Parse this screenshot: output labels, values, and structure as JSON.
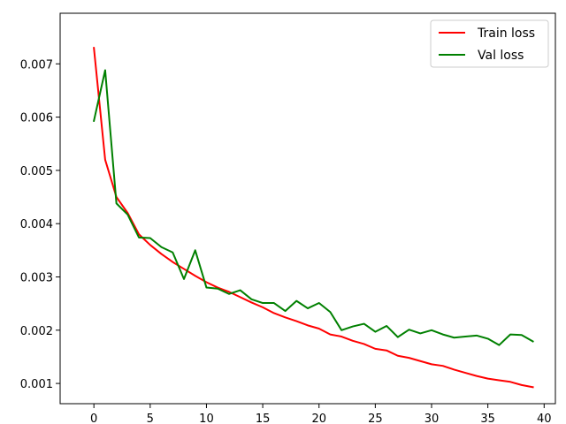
{
  "chart_data": {
    "type": "line",
    "title": "",
    "xlabel": "",
    "ylabel": "",
    "xlim": [
      -3,
      41
    ],
    "ylim": [
      0.00062,
      0.00795
    ],
    "xticks": [
      0,
      5,
      10,
      15,
      20,
      25,
      30,
      35,
      40
    ],
    "xtick_labels": [
      "0",
      "5",
      "10",
      "15",
      "20",
      "25",
      "30",
      "35",
      "40"
    ],
    "yticks": [
      0.001,
      0.002,
      0.003,
      0.004,
      0.005,
      0.006,
      0.007
    ],
    "ytick_labels": [
      "0.001",
      "0.002",
      "0.003",
      "0.004",
      "0.005",
      "0.006",
      "0.007"
    ],
    "grid": false,
    "legend_position": "top-right",
    "x": [
      0,
      1,
      2,
      3,
      4,
      5,
      6,
      7,
      8,
      9,
      10,
      11,
      12,
      13,
      14,
      15,
      16,
      17,
      18,
      19,
      20,
      21,
      22,
      23,
      24,
      25,
      26,
      27,
      28,
      29,
      30,
      31,
      32,
      33,
      34,
      35,
      36,
      37,
      38,
      39
    ],
    "series": [
      {
        "name": "Train loss",
        "color": "#ff0000",
        "values": [
          0.0073,
          0.0052,
          0.0045,
          0.0042,
          0.0038,
          0.0036,
          0.00343,
          0.00328,
          0.00315,
          0.00302,
          0.0029,
          0.0028,
          0.00272,
          0.00262,
          0.00252,
          0.00243,
          0.00232,
          0.00224,
          0.00217,
          0.00209,
          0.00203,
          0.00192,
          0.00188,
          0.0018,
          0.00174,
          0.00165,
          0.00162,
          0.00152,
          0.00148,
          0.00142,
          0.00136,
          0.00133,
          0.00126,
          0.0012,
          0.00114,
          0.00109,
          0.00106,
          0.00103,
          0.00097,
          0.00093
        ]
      },
      {
        "name": "Val loss",
        "color": "#008000",
        "values": [
          0.00593,
          0.00688,
          0.00438,
          0.00417,
          0.00374,
          0.00373,
          0.00356,
          0.00346,
          0.00296,
          0.0035,
          0.0028,
          0.00278,
          0.00268,
          0.00275,
          0.00258,
          0.00251,
          0.00251,
          0.00236,
          0.00255,
          0.00241,
          0.00251,
          0.00234,
          0.002,
          0.00207,
          0.00212,
          0.00197,
          0.00208,
          0.00187,
          0.00201,
          0.00194,
          0.002,
          0.00192,
          0.00186,
          0.00188,
          0.0019,
          0.00184,
          0.00172,
          0.00192,
          0.00191,
          0.00179
        ]
      }
    ]
  }
}
